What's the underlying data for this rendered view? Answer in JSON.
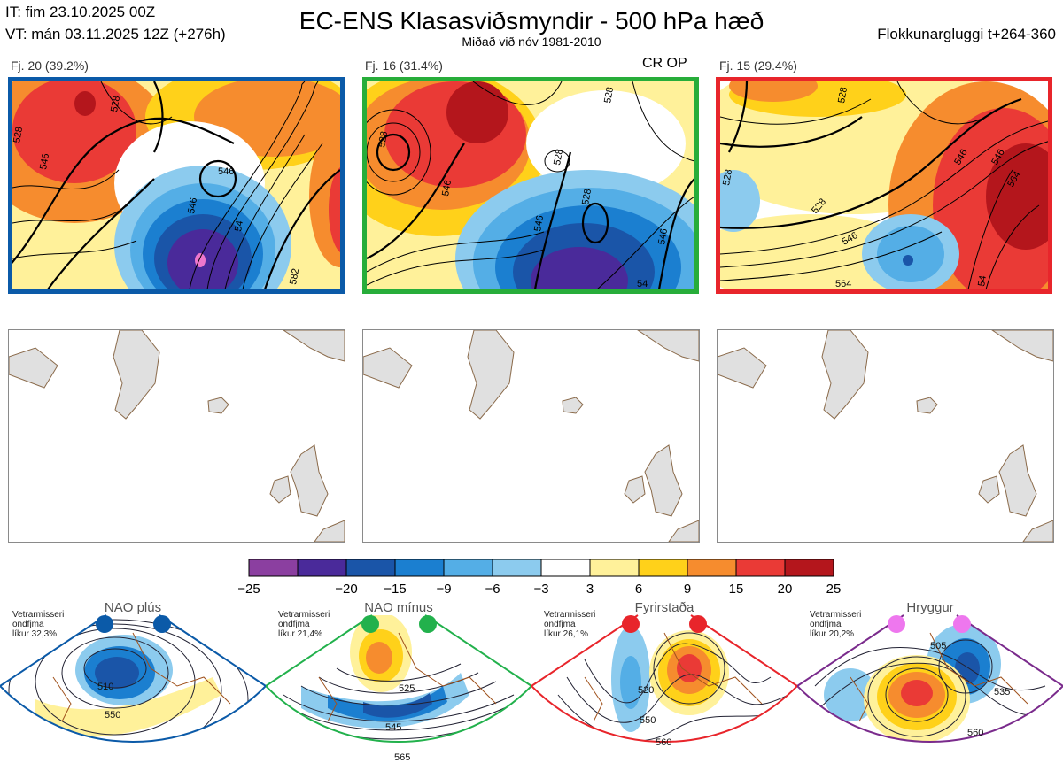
{
  "header": {
    "it": "IT: fim 23.10.2025 00Z",
    "vt": "VT: mán 03.11.2025 12Z  (+276h)",
    "title": "EC-ENS Klasasviðsmyndir - 500 hPa hæð",
    "subtitle": "Miðað við nóv 1981-2010",
    "window": "Flokkunargluggi t+264-360"
  },
  "clusters": [
    {
      "label": "Fj. 20 (39.2%)",
      "border": "#0b5aa8",
      "contours": [
        "528",
        "546",
        "528",
        "546",
        "546",
        "54",
        "582"
      ]
    },
    {
      "label": "Fj. 16 (31.4%)",
      "border": "#27ad3a",
      "contours": [
        "528",
        "528",
        "546",
        "546",
        "528",
        "528",
        "546",
        "54"
      ]
    },
    {
      "label": "Fj. 15 (29.4%)",
      "border": "#e8252b",
      "contours": [
        "528",
        "528",
        "546",
        "528",
        "546",
        "564",
        "546",
        "564",
        "54"
      ]
    }
  ],
  "cr_op": "CR OP",
  "chart_data": {
    "type": "heatmap",
    "title": "EC-ENS Klasasviðsmyndir - 500 hPa hæð",
    "colorbar": {
      "ticks": [
        "−25",
        "−20",
        "−15",
        "−9",
        "−6",
        "−3",
        "3",
        "6",
        "9",
        "15",
        "20",
        "25"
      ],
      "colors": [
        "#8b3fa0",
        "#4a2a9a",
        "#1a55a8",
        "#1b7fd0",
        "#54aee6",
        "#8ccbee",
        "#ffffff",
        "#fff19a",
        "#ffd11a",
        "#f68c2e",
        "#ea3a36",
        "#b4161c"
      ]
    },
    "regimes": [
      {
        "name": "NAO plús",
        "dot": "#0b5aa8",
        "border": "#0b5aa8",
        "prob": "Vetrarmisseri\nondfjma\nlíkur 32,3%",
        "contours": [
          "510",
          "550"
        ]
      },
      {
        "name": "NAO mínus",
        "dot": "#22b14c",
        "border": "#22b14c",
        "prob": "Vetrarmisseri\nondfjma\nlíkur 21,4%",
        "contours": [
          "525",
          "545",
          "565"
        ]
      },
      {
        "name": "Fyrirstaða",
        "dot": "#e8252b",
        "border": "#e8252b",
        "prob": "Vetrarmisseri\nondfjma\nlíkur 26,1%",
        "contours": [
          "520",
          "550",
          "560"
        ]
      },
      {
        "name": "Hryggur",
        "dot": "#ee77ee",
        "border": "#7a2b8c",
        "prob": "Vetrarmisseri\nondfjma\nlíkur 20,2%",
        "contours": [
          "505",
          "535",
          "560"
        ]
      }
    ]
  }
}
